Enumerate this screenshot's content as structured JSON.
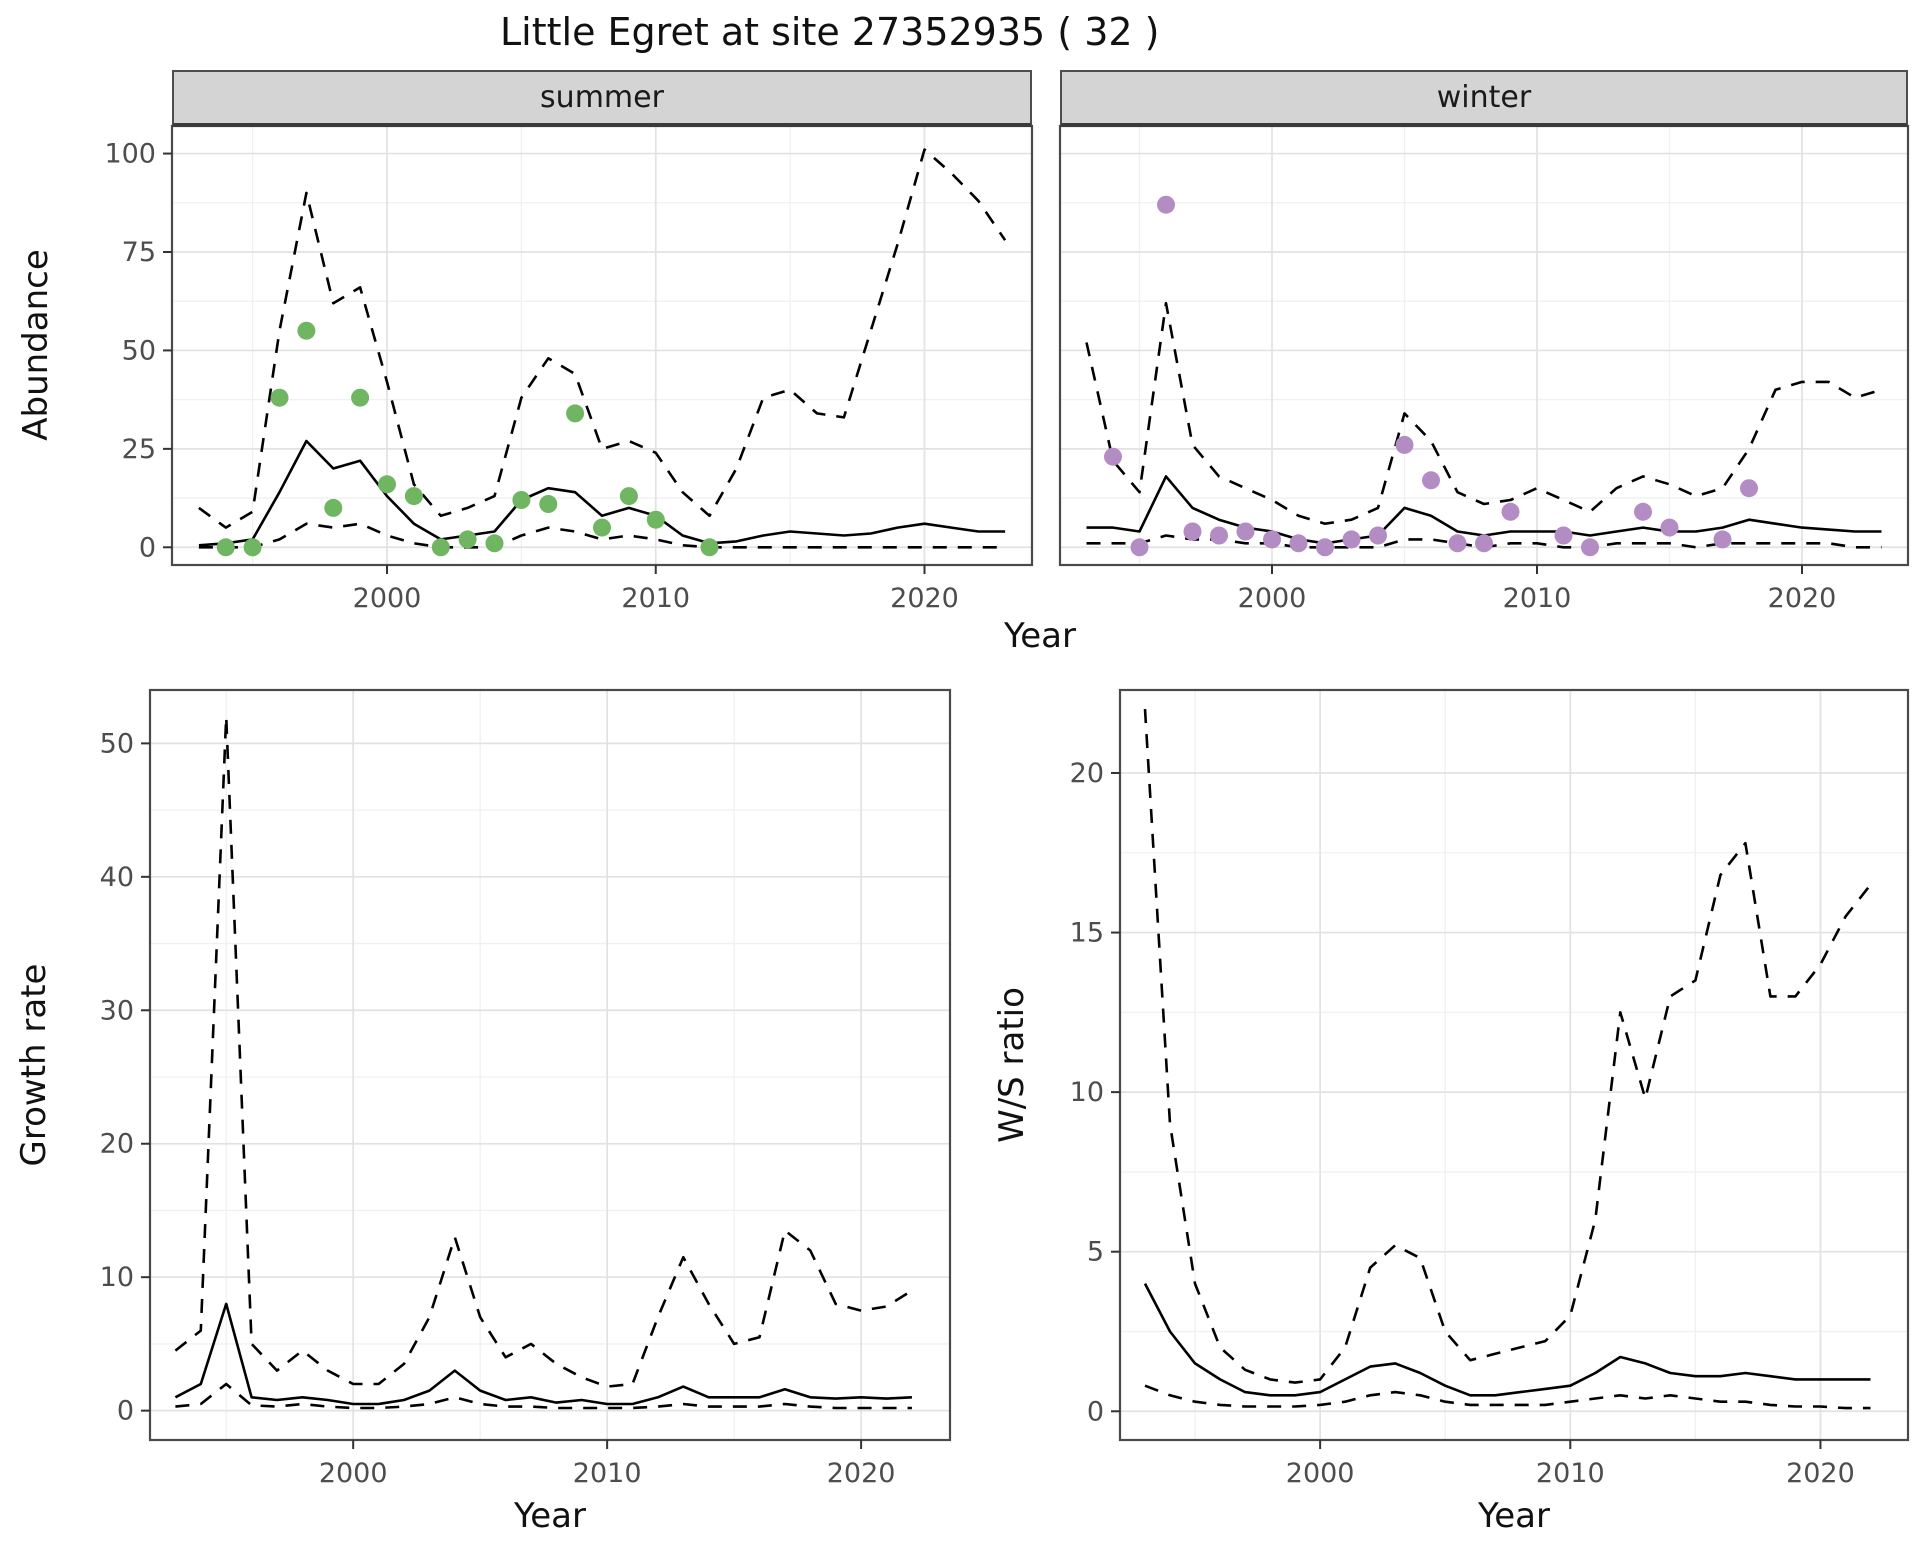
{
  "title": "Little Egret at site 27352935 ( 32 )",
  "labels": {
    "x": "Year",
    "y_abundance": "Abundance",
    "y_growth": "Growth rate",
    "y_ws": "W/S ratio"
  },
  "facets": [
    {
      "label": "summer"
    },
    {
      "label": "winter"
    }
  ],
  "colors": {
    "summer_points": "#70b562",
    "winter_points": "#b48cc4",
    "line": "#000000",
    "grid_major": "#e2e2e2",
    "grid_minor": "#f0f0f0",
    "strip_bg": "#d4d4d4",
    "panel_border": "#4a4a4a",
    "tick_text": "#4d4d4d"
  },
  "chart_data": [
    {
      "id": "abundance-summer",
      "type": "line",
      "facet": "summer",
      "xlabel": "Year",
      "ylabel": "Abundance",
      "xlim": [
        1992,
        2024
      ],
      "ylim": [
        -4.5,
        107
      ],
      "xticks": [
        2000,
        2010,
        2020
      ],
      "xticks_minor": [
        1995,
        2005,
        2015
      ],
      "yticks": [
        0,
        25,
        50,
        75,
        100
      ],
      "x": [
        1993,
        1994,
        1995,
        1996,
        1997,
        1998,
        1999,
        2000,
        2001,
        2002,
        2003,
        2004,
        2005,
        2006,
        2007,
        2008,
        2009,
        2010,
        2011,
        2012,
        2013,
        2014,
        2015,
        2016,
        2017,
        2018,
        2019,
        2020,
        2021,
        2022,
        2023
      ],
      "series": [
        {
          "name": "fitted-median",
          "style": "solid",
          "y": [
            0.5,
            1,
            2,
            14,
            27,
            20,
            22,
            13,
            6,
            2,
            3,
            4,
            12,
            15,
            14,
            8,
            10,
            8,
            3,
            1,
            1.5,
            3,
            4,
            3.5,
            3,
            3.5,
            5,
            6,
            5,
            4,
            4
          ]
        },
        {
          "name": "upper-ci",
          "style": "dashed",
          "y": [
            10,
            5,
            9,
            55,
            90,
            62,
            66,
            42,
            16,
            8,
            10,
            13,
            38,
            48,
            44,
            25,
            27,
            24,
            14,
            8,
            20,
            38,
            40,
            34,
            33,
            55,
            77,
            101,
            95,
            88,
            78
          ]
        },
        {
          "name": "lower-ci",
          "style": "dashed",
          "y": [
            0,
            0,
            0,
            2,
            6,
            5,
            6,
            3,
            1,
            0,
            0,
            0,
            3,
            5,
            4,
            2,
            3,
            2,
            0.5,
            0,
            0,
            0,
            0,
            0,
            0,
            0,
            0,
            0,
            0,
            0,
            0
          ]
        },
        {
          "name": "observed-counts",
          "style": "points",
          "color_key": "summer_points",
          "x": [
            1994,
            1995,
            1996,
            1997,
            1998,
            1999,
            2000,
            2001,
            2002,
            2003,
            2004,
            2005,
            2006,
            2007,
            2008,
            2009,
            2010,
            2012
          ],
          "y": [
            0,
            0,
            38,
            55,
            10,
            38,
            16,
            13,
            0,
            2,
            1,
            12,
            11,
            34,
            5,
            13,
            7,
            0
          ]
        }
      ]
    },
    {
      "id": "abundance-winter",
      "type": "line",
      "facet": "winter",
      "xlabel": "Year",
      "ylabel": "Abundance",
      "xlim": [
        1992,
        2024
      ],
      "ylim": [
        -4.5,
        107
      ],
      "xticks": [
        2000,
        2010,
        2020
      ],
      "xticks_minor": [
        1995,
        2005,
        2015
      ],
      "yticks": [
        0,
        25,
        50,
        75,
        100
      ],
      "x": [
        1993,
        1994,
        1995,
        1996,
        1997,
        1998,
        1999,
        2000,
        2001,
        2002,
        2003,
        2004,
        2005,
        2006,
        2007,
        2008,
        2009,
        2010,
        2011,
        2012,
        2013,
        2014,
        2015,
        2016,
        2017,
        2018,
        2019,
        2020,
        2021,
        2022,
        2023
      ],
      "series": [
        {
          "name": "fitted-median",
          "style": "solid",
          "y": [
            5,
            5,
            4,
            18,
            10,
            7,
            5,
            4,
            2,
            1,
            2,
            3,
            10,
            8,
            4,
            3,
            4,
            4,
            4,
            3,
            4,
            5,
            4,
            4,
            5,
            7,
            6,
            5,
            4.5,
            4,
            4
          ]
        },
        {
          "name": "upper-ci",
          "style": "dashed",
          "y": [
            52,
            22,
            14,
            62,
            26,
            18,
            15,
            12,
            8,
            6,
            7,
            10,
            34,
            27,
            14,
            11,
            12,
            15,
            12,
            9,
            15,
            18,
            16,
            13,
            15,
            25,
            40,
            42,
            42,
            38,
            40
          ]
        },
        {
          "name": "lower-ci",
          "style": "dashed",
          "y": [
            1,
            1,
            1,
            3,
            2,
            2,
            1,
            1,
            0,
            0,
            0,
            0,
            2,
            2,
            1,
            0,
            1,
            1,
            0,
            0,
            1,
            1,
            1,
            0,
            1,
            1,
            1,
            1,
            1,
            0,
            0
          ]
        },
        {
          "name": "observed-counts",
          "style": "points",
          "color_key": "winter_points",
          "x": [
            1994,
            1995,
            1996,
            1997,
            1998,
            1999,
            2000,
            2001,
            2002,
            2003,
            2004,
            2005,
            2006,
            2007,
            2008,
            2009,
            2011,
            2012,
            2014,
            2015,
            2017,
            2018
          ],
          "y": [
            23,
            0,
            87,
            4,
            3,
            4,
            2,
            1,
            0,
            2,
            3,
            26,
            17,
            1,
            1,
            9,
            3,
            0,
            9,
            5,
            2,
            15
          ]
        }
      ]
    },
    {
      "id": "growth-rate",
      "type": "line",
      "xlabel": "Year",
      "ylabel": "Growth rate",
      "xlim": [
        1992,
        2023.5
      ],
      "ylim": [
        -2.2,
        54
      ],
      "xticks": [
        2000,
        2010,
        2020
      ],
      "xticks_minor": [
        1995,
        2005,
        2015
      ],
      "yticks": [
        0,
        10,
        20,
        30,
        40,
        50
      ],
      "x": [
        1993,
        1994,
        1995,
        1996,
        1997,
        1998,
        1999,
        2000,
        2001,
        2002,
        2003,
        2004,
        2005,
        2006,
        2007,
        2008,
        2009,
        2010,
        2011,
        2012,
        2013,
        2014,
        2015,
        2016,
        2017,
        2018,
        2019,
        2020,
        2021,
        2022
      ],
      "series": [
        {
          "name": "fitted-median",
          "style": "solid",
          "y": [
            1,
            2,
            8,
            1,
            0.8,
            1,
            0.8,
            0.5,
            0.5,
            0.8,
            1.5,
            3,
            1.5,
            0.8,
            1,
            0.6,
            0.8,
            0.5,
            0.5,
            1,
            1.8,
            1,
            1,
            1,
            1.6,
            1,
            0.9,
            1,
            0.9,
            1
          ]
        },
        {
          "name": "upper-ci",
          "style": "dashed",
          "y": [
            4.5,
            6,
            52,
            5,
            3,
            4.5,
            3,
            2,
            2,
            3.5,
            7,
            13,
            7,
            4,
            5,
            3.5,
            2.5,
            1.8,
            2,
            7,
            11.5,
            8,
            5,
            5.5,
            13.5,
            12,
            8,
            7.5,
            7.8,
            9
          ]
        },
        {
          "name": "lower-ci",
          "style": "dashed",
          "y": [
            0.3,
            0.5,
            2,
            0.4,
            0.3,
            0.5,
            0.3,
            0.2,
            0.2,
            0.3,
            0.5,
            1,
            0.5,
            0.3,
            0.3,
            0.2,
            0.2,
            0.2,
            0.2,
            0.3,
            0.5,
            0.3,
            0.3,
            0.3,
            0.5,
            0.3,
            0.2,
            0.2,
            0.2,
            0.2
          ]
        }
      ]
    },
    {
      "id": "ws-ratio",
      "type": "line",
      "xlabel": "Year",
      "ylabel": "W/S ratio",
      "xlim": [
        1992,
        2023.5
      ],
      "ylim": [
        -0.9,
        22.6
      ],
      "xticks": [
        2000,
        2010,
        2020
      ],
      "xticks_minor": [
        1995,
        2005,
        2015
      ],
      "yticks": [
        0,
        5,
        10,
        15,
        20
      ],
      "x": [
        1993,
        1994,
        1995,
        1996,
        1997,
        1998,
        1999,
        2000,
        2001,
        2002,
        2003,
        2004,
        2005,
        2006,
        2007,
        2008,
        2009,
        2010,
        2011,
        2012,
        2013,
        2014,
        2015,
        2016,
        2017,
        2018,
        2019,
        2020,
        2021,
        2022
      ],
      "series": [
        {
          "name": "fitted-median",
          "style": "solid",
          "y": [
            4,
            2.5,
            1.5,
            1,
            0.6,
            0.5,
            0.5,
            0.6,
            1,
            1.4,
            1.5,
            1.2,
            0.8,
            0.5,
            0.5,
            0.6,
            0.7,
            0.8,
            1.2,
            1.7,
            1.5,
            1.2,
            1.1,
            1.1,
            1.2,
            1.1,
            1,
            1,
            1,
            1
          ]
        },
        {
          "name": "upper-ci",
          "style": "dashed",
          "y": [
            22,
            9,
            4,
            2,
            1.3,
            1,
            0.9,
            1,
            2,
            4.5,
            5.2,
            4.8,
            2.5,
            1.6,
            1.8,
            2,
            2.2,
            3,
            6,
            12.5,
            9.8,
            13,
            13.5,
            16.8,
            17.8,
            13,
            13,
            14,
            15.5,
            16.5
          ]
        },
        {
          "name": "lower-ci",
          "style": "dashed",
          "y": [
            0.8,
            0.5,
            0.3,
            0.2,
            0.15,
            0.15,
            0.15,
            0.2,
            0.3,
            0.5,
            0.6,
            0.5,
            0.3,
            0.2,
            0.2,
            0.2,
            0.2,
            0.3,
            0.4,
            0.5,
            0.4,
            0.5,
            0.4,
            0.3,
            0.3,
            0.2,
            0.15,
            0.15,
            0.1,
            0.1
          ]
        }
      ]
    }
  ]
}
